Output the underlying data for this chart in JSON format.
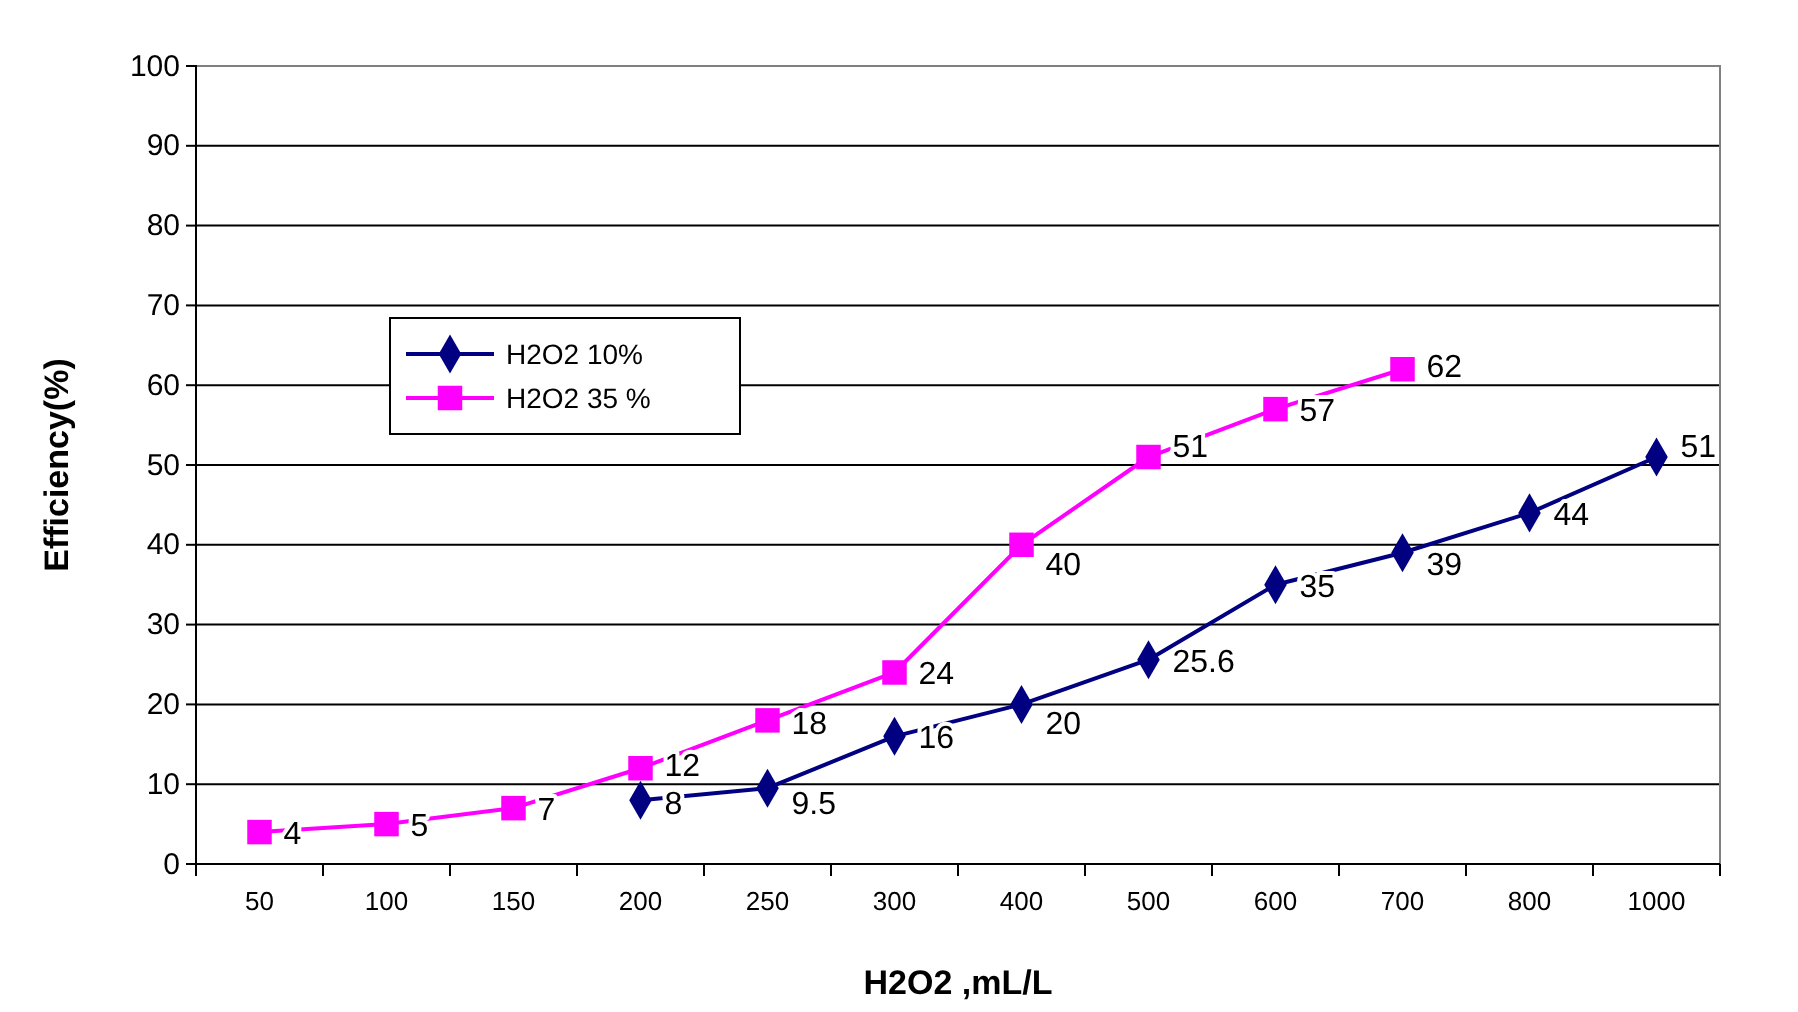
{
  "chart_data": {
    "type": "line",
    "xlabel": "H2O2 ,mL/L",
    "ylabel": "Efficiency(%)",
    "categories": [
      "50",
      "100",
      "150",
      "200",
      "250",
      "300",
      "400",
      "500",
      "600",
      "700",
      "800",
      "1000"
    ],
    "series": [
      {
        "name": "H2O2 10%",
        "color": "#000080",
        "marker": "diamond",
        "values": [
          null,
          null,
          null,
          8,
          9.5,
          16,
          20,
          25.6,
          35,
          39,
          44,
          51
        ]
      },
      {
        "name": "H2O2 35 %",
        "color": "#ff00ff",
        "marker": "square",
        "values": [
          4,
          5,
          7,
          12,
          18,
          24,
          40,
          51,
          57,
          62,
          null,
          null
        ]
      }
    ],
    "ylim": [
      0,
      100
    ],
    "yticks": [
      0,
      10,
      20,
      30,
      40,
      50,
      60,
      70,
      80,
      90,
      100
    ],
    "grid": "y",
    "legend": "top left",
    "data_labels": true,
    "line_style": "solid"
  }
}
